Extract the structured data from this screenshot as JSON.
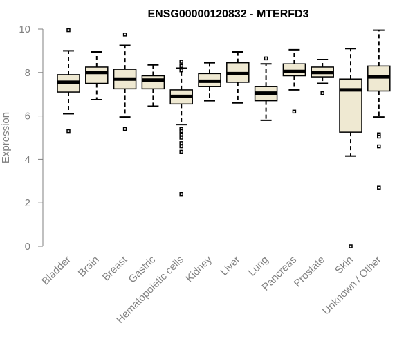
{
  "chart_data": {
    "type": "boxplot",
    "title": "ENSG00000120832 - MTERFD3",
    "xlabel": "",
    "ylabel": "Expression",
    "ylim": [
      0,
      10
    ],
    "yticks": [
      "0",
      "2",
      "4",
      "6",
      "8",
      "10"
    ],
    "grid": false,
    "box_color": "#efe9d2",
    "categories": [
      "Bladder",
      "Brain",
      "Breast",
      "Gastric",
      "Hematopoietic cells",
      "Kidney",
      "Liver",
      "Lung",
      "Pancreas",
      "Prostate",
      "Skin",
      "Unknown / Other"
    ],
    "boxes": [
      {
        "whisker_low": 6.1,
        "q1": 7.1,
        "median": 7.55,
        "q3": 7.9,
        "whisker_high": 9.0,
        "outliers": [
          9.95,
          5.3
        ]
      },
      {
        "whisker_low": 6.75,
        "q1": 7.5,
        "median": 8.0,
        "q3": 8.25,
        "whisker_high": 8.95,
        "outliers": []
      },
      {
        "whisker_low": 5.95,
        "q1": 7.25,
        "median": 7.7,
        "q3": 8.15,
        "whisker_high": 9.25,
        "outliers": [
          9.75,
          5.4
        ]
      },
      {
        "whisker_low": 6.45,
        "q1": 7.25,
        "median": 7.65,
        "q3": 7.85,
        "whisker_high": 8.35,
        "outliers": []
      },
      {
        "whisker_low": 5.6,
        "q1": 6.55,
        "median": 6.9,
        "q3": 7.2,
        "whisker_high": 8.2,
        "outliers": [
          8.5,
          8.3,
          8.1,
          5.4,
          5.3,
          5.15,
          5.0,
          4.75,
          4.6,
          4.35,
          2.4
        ]
      },
      {
        "whisker_low": 6.7,
        "q1": 7.35,
        "median": 7.6,
        "q3": 7.95,
        "whisker_high": 8.45,
        "outliers": []
      },
      {
        "whisker_low": 6.6,
        "q1": 7.55,
        "median": 7.95,
        "q3": 8.45,
        "whisker_high": 8.95,
        "outliers": []
      },
      {
        "whisker_low": 5.8,
        "q1": 6.7,
        "median": 7.05,
        "q3": 7.35,
        "whisker_high": 8.4,
        "outliers": [
          8.65
        ]
      },
      {
        "whisker_low": 7.2,
        "q1": 7.85,
        "median": 8.05,
        "q3": 8.4,
        "whisker_high": 9.05,
        "outliers": [
          6.2
        ]
      },
      {
        "whisker_low": 7.5,
        "q1": 7.8,
        "median": 8.0,
        "q3": 8.25,
        "whisker_high": 8.6,
        "outliers": [
          7.05
        ]
      },
      {
        "whisker_low": 4.15,
        "q1": 5.25,
        "median": 7.2,
        "q3": 7.7,
        "whisker_high": 9.1,
        "outliers": [
          0.0
        ]
      },
      {
        "whisker_low": 5.95,
        "q1": 7.15,
        "median": 7.8,
        "q3": 8.3,
        "whisker_high": 9.95,
        "outliers": [
          5.15,
          5.05,
          4.6,
          2.7
        ]
      }
    ]
  }
}
